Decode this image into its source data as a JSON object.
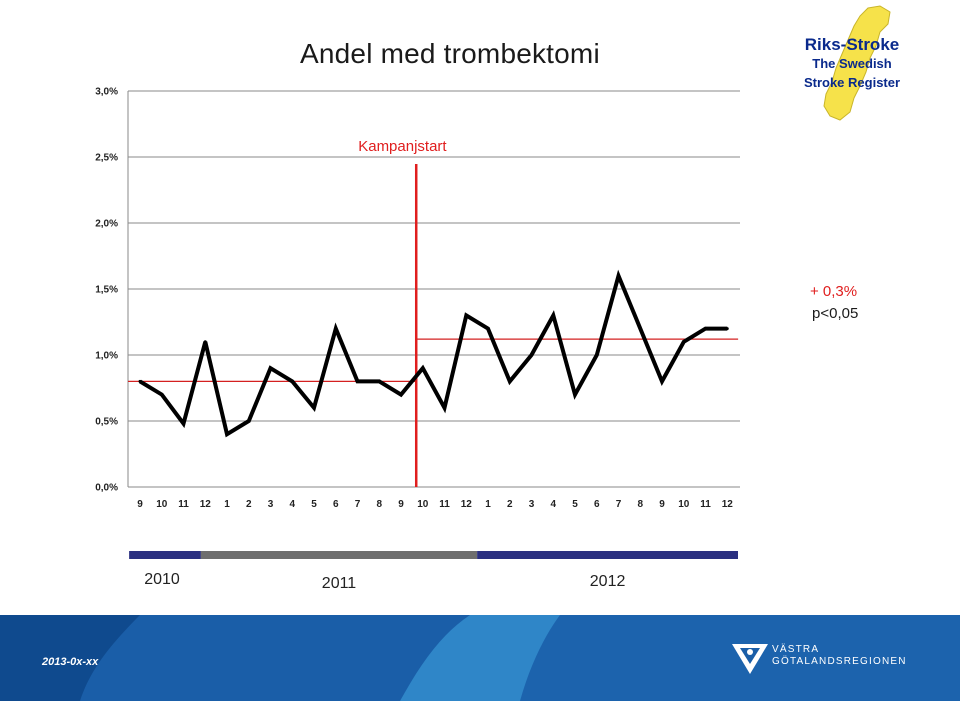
{
  "title": "Andel med trombektomi",
  "logo": {
    "line1": "Riks-Stroke",
    "line2": "The Swedish",
    "line3": "Stroke Register"
  },
  "footer": {
    "date": "2013-0x-xx",
    "org_line1": "VÄSTRA",
    "org_line2": "GÖTALANDSREGIONEN"
  },
  "colors": {
    "series": "#000000",
    "baseline": "#d42020",
    "campaign": "#e01e1e",
    "year_bar_navy": "#2a2f80",
    "year_bar_gray": "#6e6e6e",
    "footer_blue": "#1a5ea8"
  },
  "chart_data": {
    "type": "line",
    "title": "Andel med trombektomi",
    "x": [
      "9",
      "10",
      "11",
      "12",
      "1",
      "2",
      "3",
      "4",
      "5",
      "6",
      "7",
      "8",
      "9",
      "10",
      "11",
      "12",
      "1",
      "2",
      "3",
      "4",
      "5",
      "6",
      "7",
      "8",
      "9",
      "10",
      "11",
      "12"
    ],
    "yticks": [
      "0,0%",
      "0,5%",
      "1,0%",
      "1,5%",
      "2,0%",
      "2,5%",
      "3,0%"
    ],
    "ylim": [
      0,
      3.0
    ],
    "grid": true,
    "series": [
      {
        "values": [
          0.8,
          0.7,
          0.48,
          1.1,
          0.4,
          0.5,
          0.9,
          0.8,
          0.6,
          1.2,
          0.8,
          0.8,
          0.7,
          0.9,
          0.6,
          1.3,
          1.2,
          0.8,
          1.0,
          1.3,
          0.7,
          1.0,
          1.6,
          1.2,
          0.8,
          1.1,
          1.2,
          1.2
        ]
      }
    ],
    "reference_lines": [
      {
        "value": 0.8,
        "from_index": 0,
        "to_index": 12.7
      },
      {
        "value": 1.12,
        "from_index": 12.7,
        "to_index": 27.5
      }
    ],
    "campaign": {
      "label": "Kampanjstart",
      "position_index": 12.7
    },
    "annotation": {
      "change": "+ 0,3%",
      "pvalue": "p<0,05"
    },
    "years": [
      {
        "label": "2010",
        "from_index": -0.5,
        "to_index": 2.8
      },
      {
        "label": "2011",
        "from_index": 2.8,
        "to_index": 15.5
      },
      {
        "label": "2012",
        "from_index": 15.5,
        "to_index": 27.5
      }
    ]
  }
}
